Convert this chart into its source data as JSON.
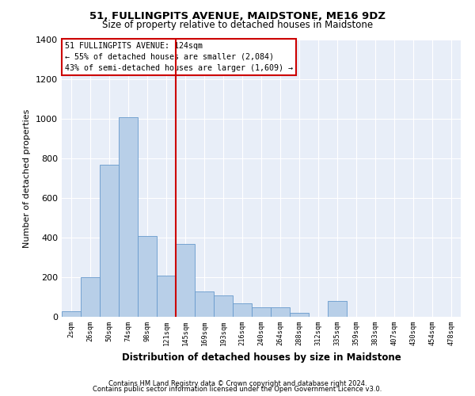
{
  "title": "51, FULLINGPITS AVENUE, MAIDSTONE, ME16 9DZ",
  "subtitle": "Size of property relative to detached houses in Maidstone",
  "xlabel": "Distribution of detached houses by size in Maidstone",
  "ylabel": "Number of detached properties",
  "categories": [
    "2sqm",
    "26sqm",
    "50sqm",
    "74sqm",
    "98sqm",
    "121sqm",
    "145sqm",
    "169sqm",
    "193sqm",
    "216sqm",
    "240sqm",
    "264sqm",
    "288sqm",
    "312sqm",
    "335sqm",
    "359sqm",
    "383sqm",
    "407sqm",
    "430sqm",
    "454sqm",
    "478sqm"
  ],
  "bar_heights": [
    30,
    200,
    770,
    1010,
    410,
    210,
    370,
    130,
    110,
    70,
    50,
    50,
    20,
    0,
    80,
    0,
    0,
    0,
    0,
    0,
    0
  ],
  "bar_color": "#b8cfe8",
  "bar_edge_color": "#6699cc",
  "vline_x": 5.5,
  "vline_color": "#cc0000",
  "annotation_text": "51 FULLINGPITS AVENUE: 124sqm\n← 55% of detached houses are smaller (2,084)\n43% of semi-detached houses are larger (1,609) →",
  "annotation_box_color": "#cc0000",
  "ylim": [
    0,
    1400
  ],
  "yticks": [
    0,
    200,
    400,
    600,
    800,
    1000,
    1200,
    1400
  ],
  "footer1": "Contains HM Land Registry data © Crown copyright and database right 2024.",
  "footer2": "Contains public sector information licensed under the Open Government Licence v3.0.",
  "bg_color": "#e8eef8",
  "plot_bg_color": "#e8eef8"
}
